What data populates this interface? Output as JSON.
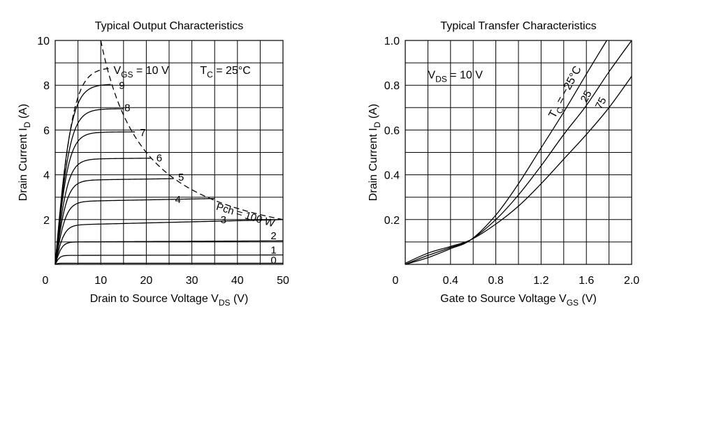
{
  "chart_data": [
    {
      "type": "line",
      "title": "Typical Output Characteristics",
      "xlabel": {
        "main": "Drain to Source Voltage  V",
        "sub": "DS",
        "unit": "  (V)"
      },
      "ylabel": {
        "main": "Drain Current  I",
        "sub": "D",
        "unit": "  (A)"
      },
      "xlim": [
        0,
        50
      ],
      "ylim": [
        0,
        10
      ],
      "xticks": [
        "0",
        "10",
        "20",
        "30",
        "40",
        "50"
      ],
      "yticks": [
        "0",
        "2",
        "4",
        "6",
        "8",
        "10"
      ],
      "grid": true,
      "annotations": {
        "vgs": {
          "main": "V",
          "sub": "GS",
          "rest": " = 10 V"
        },
        "tc": {
          "main": "T",
          "sub": "C",
          "rest": " = 25°C"
        },
        "pch": "Pch = 100 W"
      },
      "series": [
        {
          "label": "9",
          "knee": 3.5,
          "x": [
            0,
            12.2
          ],
          "sat": [
            8.05,
            8.05
          ]
        },
        {
          "label": "8",
          "knee": 3.3,
          "x": [
            0,
            15
          ],
          "sat": [
            6.95,
            6.95
          ]
        },
        {
          "label": "7",
          "knee": 3.0,
          "x": [
            0,
            17.5
          ],
          "sat": [
            5.9,
            5.95
          ]
        },
        {
          "label": "6",
          "knee": 2.8,
          "x": [
            0,
            21
          ],
          "sat": [
            4.7,
            4.8
          ]
        },
        {
          "label": "5",
          "knee": 2.6,
          "x": [
            0,
            26
          ],
          "sat": [
            3.75,
            3.9
          ]
        },
        {
          "label": "4",
          "knee": 2.4,
          "x": [
            0,
            35
          ],
          "sat": [
            2.8,
            3.0
          ]
        },
        {
          "label": "3",
          "knee": 2.0,
          "x": [
            0,
            50
          ],
          "sat": [
            1.75,
            2.0
          ]
        },
        {
          "label": "2",
          "knee": 1.5,
          "x": [
            0,
            50
          ],
          "sat": [
            1.0,
            1.05
          ]
        },
        {
          "label": "1",
          "knee": 1.0,
          "x": [
            0,
            50
          ],
          "sat": [
            0.4,
            0.42
          ]
        },
        {
          "label": "0",
          "knee": 0.5,
          "x": [
            0,
            50
          ],
          "sat": [
            0.05,
            0.05
          ]
        }
      ],
      "vgs10_dashed": {
        "knee": 4.0,
        "x": [
          0,
          12
        ],
        "sat": [
          8.8,
          8.8
        ]
      },
      "power_limit_W": 100
    },
    {
      "type": "line",
      "title": "Typical Transfer Characteristics",
      "xlabel": {
        "main": "Gate to Source Voltage  V",
        "sub": "GS",
        "unit": "  (V)"
      },
      "ylabel": {
        "main": "Drain Current  I",
        "sub": "D",
        "unit": "  (A)"
      },
      "xlim": [
        0,
        2.0
      ],
      "ylim": [
        0,
        1.0
      ],
      "xticks": [
        "0",
        "0.4",
        "0.8",
        "1.2",
        "1.6",
        "2.0"
      ],
      "yticks": [
        "0",
        "0.2",
        "0.4",
        "0.6",
        "0.8",
        "1.0"
      ],
      "grid": true,
      "annotations": {
        "vds": {
          "main": "V",
          "sub": "DS",
          "rest": " = 10 V"
        },
        "tc_series": {
          "main": "T",
          "sub": "C",
          "rest": " = −25°C"
        }
      },
      "series": [
        {
          "label": "−25°C",
          "x": [
            0,
            0.2,
            0.4,
            0.58,
            0.8,
            1.0,
            1.2,
            1.4,
            1.6,
            1.78
          ],
          "y": [
            0,
            0.03,
            0.07,
            0.11,
            0.22,
            0.36,
            0.52,
            0.68,
            0.85,
            1.0
          ]
        },
        {
          "label": "25",
          "x": [
            0,
            0.2,
            0.4,
            0.58,
            0.8,
            1.0,
            1.2,
            1.4,
            1.6,
            1.8,
            2.0
          ],
          "y": [
            0,
            0.04,
            0.075,
            0.11,
            0.2,
            0.31,
            0.44,
            0.58,
            0.71,
            0.86,
            1.0
          ]
        },
        {
          "label": "75",
          "x": [
            0,
            0.2,
            0.4,
            0.58,
            0.8,
            1.0,
            1.2,
            1.4,
            1.6,
            1.8,
            2.0
          ],
          "y": [
            0.005,
            0.05,
            0.08,
            0.11,
            0.18,
            0.26,
            0.36,
            0.47,
            0.58,
            0.7,
            0.84
          ]
        }
      ]
    }
  ]
}
